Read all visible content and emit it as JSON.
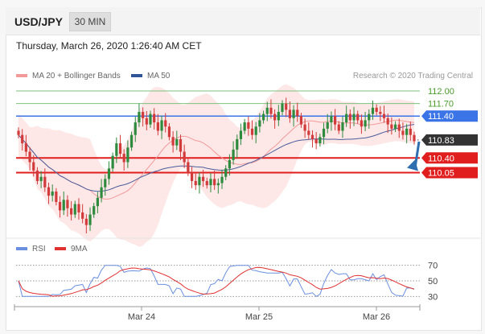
{
  "header": {
    "symbol": "USD/JPY",
    "timeframe": "30 MIN"
  },
  "timestamp": "Thursday, March 26, 2020 1:26:40 AM CET",
  "legend": {
    "bands": "MA 20 + Bollinger Bands",
    "ma50": "MA 50",
    "research": "Research © 2020 Trading Central"
  },
  "rsi_legend": {
    "rsi": "RSI",
    "ma9": "9MA"
  },
  "colors": {
    "bands_fill": "#fde3e3",
    "ma20": "#f29a9a",
    "ma50": "#4a5d9a",
    "up": "#2e8b3e",
    "down": "#d23b3b",
    "blue_level": "#3b74e6",
    "red_level": "#e01e1e",
    "green_level": "#7cc27c",
    "rsi": "#6a8fe0",
    "rsi_ma": "#e03030"
  },
  "chart_data": {
    "type": "candlestick",
    "x_labels": [
      "Mar 24",
      "Mar 25",
      "Mar 26"
    ],
    "y_range": [
      108.6,
      112.25
    ],
    "price_levels": [
      {
        "value": 112.0,
        "label": "112.00",
        "style": "green-line"
      },
      {
        "value": 111.7,
        "label": "111.70",
        "style": "green-line"
      },
      {
        "value": 111.4,
        "label": "111.40",
        "style": "blue-tag"
      },
      {
        "value": 110.83,
        "label": "110.83",
        "style": "last-price"
      },
      {
        "value": 110.4,
        "label": "110.40",
        "style": "red-tag"
      },
      {
        "value": 110.05,
        "label": "110.05",
        "style": "red-tag"
      }
    ],
    "close_series": [
      110.95,
      110.75,
      110.55,
      110.3,
      110.1,
      109.85,
      109.95,
      109.7,
      109.5,
      109.6,
      109.35,
      109.15,
      109.4,
      109.2,
      109.05,
      109.3,
      109.1,
      108.95,
      108.8,
      109.05,
      109.25,
      109.45,
      109.7,
      109.9,
      110.15,
      110.45,
      110.75,
      110.5,
      110.3,
      110.65,
      110.95,
      111.25,
      111.5,
      111.35,
      111.2,
      111.45,
      111.25,
      111.05,
      111.3,
      111.15,
      110.9,
      110.7,
      110.85,
      110.55,
      110.3,
      110.05,
      109.85,
      109.75,
      109.95,
      109.85,
      109.75,
      109.9,
      109.75,
      109.8,
      109.95,
      110.15,
      110.35,
      110.6,
      110.85,
      111.05,
      111.25,
      111.1,
      110.95,
      111.15,
      111.3,
      111.45,
      111.6,
      111.45,
      111.3,
      111.5,
      111.7,
      111.55,
      111.35,
      111.55,
      111.4,
      111.2,
      111.05,
      110.95,
      110.85,
      110.75,
      110.9,
      111.1,
      111.25,
      111.4,
      111.2,
      111.05,
      111.25,
      111.45,
      111.3,
      111.45,
      111.3,
      111.15,
      111.3,
      111.45,
      111.6,
      111.5,
      111.45,
      111.35,
      111.2,
      111.1,
      111.2,
      111.05,
      110.95,
      111.1,
      110.95,
      110.8
    ],
    "moving_averages": [
      {
        "name": "MA 20 + Bollinger Bands"
      },
      {
        "name": "MA 50"
      }
    ],
    "rsi": {
      "levels": [
        70,
        50,
        30
      ],
      "level_labels": [
        "70",
        "50",
        "30"
      ],
      "y_range": [
        20,
        80
      ],
      "series": [
        {
          "name": "RSI"
        },
        {
          "name": "9MA"
        }
      ]
    }
  }
}
